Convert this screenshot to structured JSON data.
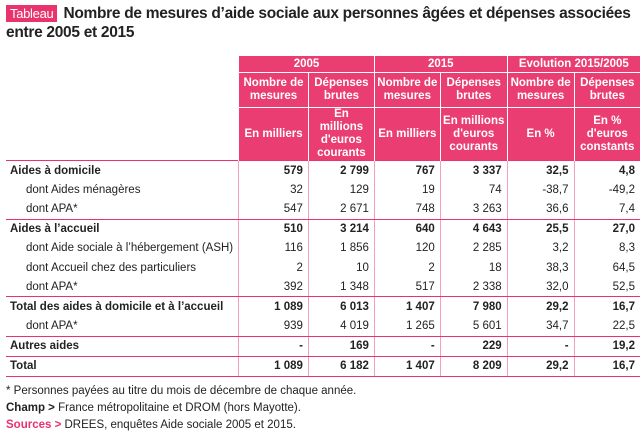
{
  "badge": "Tableau",
  "title": "Nombre de mesures d’aide sociale aux personnes âgées et dépenses associées entre 2005 et 2015",
  "table": {
    "groups": [
      "2005",
      "2015",
      "Evolution 2015/2005"
    ],
    "col_headers": [
      "Nombre de mesures",
      "Dépenses brutes",
      "Nombre de mesures",
      "Dépenses brutes",
      "Nombre de mesures",
      "Dépenses brutes"
    ],
    "units": [
      "En milliers",
      "En millions d'euros courants",
      "En milliers",
      "En millions d'euros courants",
      "En %",
      "En % d'euros constants"
    ],
    "rows": [
      [
        "Aides à domicile",
        "579",
        "2 799",
        "767",
        "3 337",
        "32,5",
        "4,8"
      ],
      [
        "dont Aides ménagères",
        "32",
        "129",
        "19",
        "74",
        "-38,7",
        "-49,2"
      ],
      [
        "dont APA*",
        "547",
        "2 671",
        "748",
        "3 263",
        "36,6",
        "7,4"
      ],
      [
        "Aides à l’accueil",
        "510",
        "3 214",
        "640",
        "4 643",
        "25,5",
        "27,0"
      ],
      [
        "dont Aide sociale à l’hébergement (ASH)",
        "116",
        "1 856",
        "120",
        "2 285",
        "3,2",
        "8,3"
      ],
      [
        "dont Accueil chez des particuliers",
        "2",
        "10",
        "2",
        "18",
        "38,3",
        "64,5"
      ],
      [
        "dont APA*",
        "392",
        "1 348",
        "517",
        "2 338",
        "32,0",
        "52,5"
      ],
      [
        "Total des aides à domicile et à l’accueil",
        "1 089",
        "6 013",
        "1 407",
        "7 980",
        "29,2",
        "16,7"
      ],
      [
        "dont APA*",
        "939",
        "4 019",
        "1 265",
        "5 601",
        "34,7",
        "22,5"
      ],
      [
        "Autres aides",
        "-",
        "169",
        "-",
        "229",
        "-",
        "19,2"
      ],
      [
        "Total",
        "1 089",
        "6 182",
        "1 407",
        "8 209",
        "29,2",
        "16,7"
      ]
    ]
  },
  "notes": {
    "footnote": "* Personnes payées au titre du mois de décembre de chaque année.",
    "champ_label": "Champ >",
    "champ": "France métropolitaine et DROM (hors Mayotte).",
    "sources_label": "Sources >",
    "sources": "DREES, enquêtes Aide sociale 2005 et 2015."
  }
}
